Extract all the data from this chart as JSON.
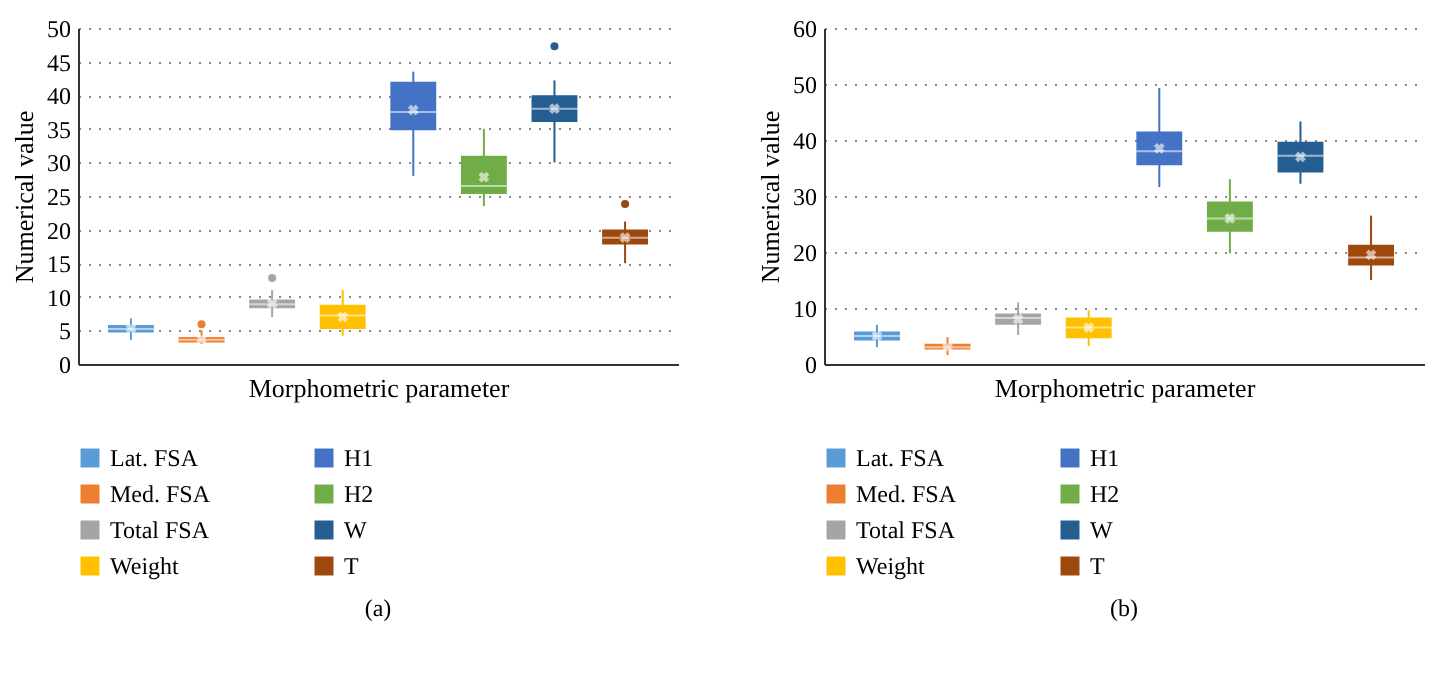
{
  "chart_data": [
    {
      "type": "box",
      "categories": [
        null
      ],
      "xlabel": "Morphometric parameter",
      "ylabel": "Numerical value",
      "ylim": [
        0,
        50
      ],
      "yticks": [
        0,
        5,
        10,
        15,
        20,
        25,
        30,
        35,
        40,
        45,
        50
      ],
      "grid": "y",
      "legend": "bottom",
      "annotations": [
        "(a)"
      ],
      "series": [
        {
          "name": "Lat. FSA",
          "color": "#5b9bd5",
          "boxes": [
            {
              "low": 3.6,
              "q1": 4.7,
              "median": 5.2,
              "q3": 5.8,
              "high": 6.8,
              "mean": 5.3
            }
          ]
        },
        {
          "name": "Med. FSA",
          "color": "#ed7d31",
          "boxes": [
            {
              "low": 3.0,
              "q1": 3.2,
              "median": 3.6,
              "q3": 4.0,
              "high": 5.0,
              "mean": 3.7,
              "outliers": [
                5.9
              ]
            }
          ]
        },
        {
          "name": "Total FSA",
          "color": "#a5a5a5",
          "boxes": [
            {
              "low": 7.0,
              "q1": 8.3,
              "median": 8.9,
              "q3": 9.6,
              "high": 11.0,
              "mean": 9.0,
              "outliers": [
                12.8
              ]
            }
          ]
        },
        {
          "name": "Weight",
          "color": "#ffc000",
          "boxes": [
            {
              "low": 4.2,
              "q1": 5.2,
              "median": 7.2,
              "q3": 8.8,
              "high": 11.0,
              "mean": 7.0
            }
          ]
        },
        {
          "name": "H1",
          "color": "#4472c4",
          "boxes": [
            {
              "low": 28.0,
              "q1": 34.8,
              "median": 37.5,
              "q3": 42.0,
              "high": 43.5,
              "mean": 37.8
            }
          ]
        },
        {
          "name": "H2",
          "color": "#70ad47",
          "boxes": [
            {
              "low": 23.5,
              "q1": 25.3,
              "median": 26.5,
              "q3": 31.0,
              "high": 35.0,
              "mean": 27.8
            }
          ]
        },
        {
          "name": "W",
          "color": "#255e91",
          "boxes": [
            {
              "low": 30.0,
              "q1": 36.0,
              "median": 38.0,
              "q3": 40.0,
              "high": 42.2,
              "mean": 38.0,
              "outliers": [
                47.3
              ]
            }
          ]
        },
        {
          "name": "T",
          "color": "#9e480e",
          "boxes": [
            {
              "low": 15.0,
              "q1": 17.8,
              "median": 18.8,
              "q3": 20.0,
              "high": 21.2,
              "mean": 18.8,
              "outliers": [
                23.8
              ]
            }
          ]
        }
      ]
    },
    {
      "type": "box",
      "categories": [
        null
      ],
      "xlabel": "Morphometric parameter",
      "ylabel": "Numerical value",
      "ylim": [
        0,
        60
      ],
      "yticks": [
        0,
        10,
        20,
        30,
        40,
        50,
        60
      ],
      "grid": "y",
      "legend": "bottom",
      "annotations": [
        "(b)"
      ],
      "series": [
        {
          "name": "Lat. FSA",
          "color": "#5b9bd5",
          "boxes": [
            {
              "low": 3.0,
              "q1": 4.2,
              "median": 5.0,
              "q3": 5.8,
              "high": 7.0,
              "mean": 5.0
            }
          ]
        },
        {
          "name": "Med. FSA",
          "color": "#ed7d31",
          "boxes": [
            {
              "low": 1.6,
              "q1": 2.6,
              "median": 3.0,
              "q3": 3.6,
              "high": 4.8,
              "mean": 3.0
            }
          ]
        },
        {
          "name": "Total FSA",
          "color": "#a5a5a5",
          "boxes": [
            {
              "low": 5.2,
              "q1": 7.0,
              "median": 8.2,
              "q3": 9.0,
              "high": 11.0,
              "mean": 8.0
            }
          ]
        },
        {
          "name": "Weight",
          "color": "#ffc000",
          "boxes": [
            {
              "low": 3.2,
              "q1": 4.6,
              "median": 6.5,
              "q3": 8.3,
              "high": 9.6,
              "mean": 6.5
            }
          ]
        },
        {
          "name": "H1",
          "color": "#4472c4",
          "boxes": [
            {
              "low": 31.6,
              "q1": 35.5,
              "median": 38.0,
              "q3": 41.5,
              "high": 49.3,
              "mean": 38.5
            }
          ]
        },
        {
          "name": "H2",
          "color": "#70ad47",
          "boxes": [
            {
              "low": 19.8,
              "q1": 23.6,
              "median": 26.0,
              "q3": 29.0,
              "high": 33.0,
              "mean": 26.0
            }
          ]
        },
        {
          "name": "W",
          "color": "#255e91",
          "boxes": [
            {
              "low": 32.2,
              "q1": 34.2,
              "median": 37.2,
              "q3": 39.7,
              "high": 43.3,
              "mean": 37.0
            }
          ]
        },
        {
          "name": "T",
          "color": "#9e480e",
          "boxes": [
            {
              "low": 15.0,
              "q1": 17.6,
              "median": 19.0,
              "q3": 21.3,
              "high": 26.5,
              "mean": 19.5
            }
          ]
        }
      ]
    }
  ]
}
